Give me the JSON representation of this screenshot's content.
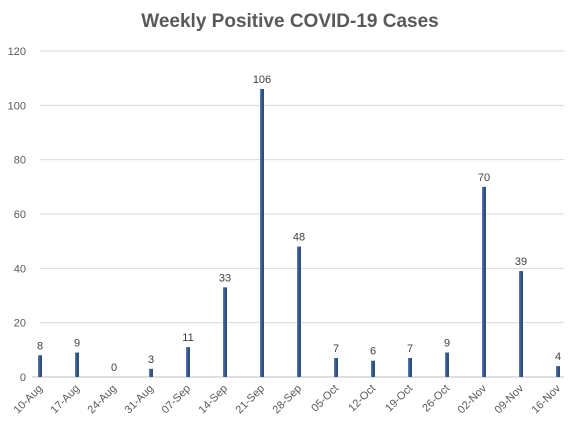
{
  "chart_data": {
    "type": "bar",
    "title": "Weekly Positive COVID-19 Cases",
    "categories": [
      "10-Aug",
      "17-Aug",
      "24-Aug",
      "31-Aug",
      "07-Sep",
      "14-Sep",
      "21-Sep",
      "28-Sep",
      "05-Oct",
      "12-Oct",
      "19-Oct",
      "26-Oct",
      "02-Nov",
      "09-Nov",
      "16-Nov"
    ],
    "values": [
      8,
      9,
      0,
      3,
      11,
      33,
      106,
      48,
      7,
      6,
      7,
      9,
      70,
      39,
      4
    ],
    "ylim": [
      0,
      120
    ],
    "yticks": [
      0,
      20,
      40,
      60,
      80,
      100,
      120
    ],
    "grid": true,
    "data_labels": true,
    "colors": {
      "bar": "#2f4f7f",
      "bar_highlight": "#5b82b8"
    }
  }
}
